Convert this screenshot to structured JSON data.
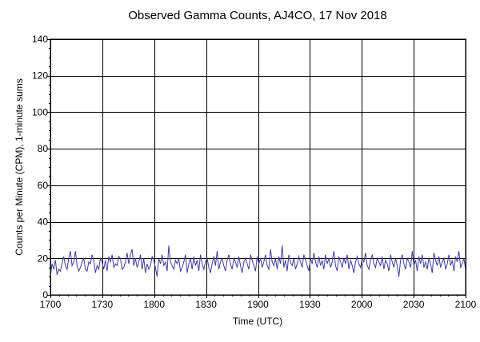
{
  "chart_data": {
    "type": "line",
    "title": "Observed Gamma Counts, AJ4CO, 17 Nov 2018",
    "xlabel": "Time (UTC)",
    "ylabel": "Counts per Minute (CPM), 1-minute sums",
    "xlim": [
      0,
      240
    ],
    "ylim": [
      0,
      140
    ],
    "x_ticks": [
      {
        "value": 0,
        "label": "1700"
      },
      {
        "value": 30,
        "label": "1730"
      },
      {
        "value": 60,
        "label": "1800"
      },
      {
        "value": 90,
        "label": "1830"
      },
      {
        "value": 120,
        "label": "1900"
      },
      {
        "value": 150,
        "label": "1930"
      },
      {
        "value": 180,
        "label": "2000"
      },
      {
        "value": 210,
        "label": "2030"
      },
      {
        "value": 240,
        "label": "2100"
      }
    ],
    "y_ticks": [
      {
        "value": 0,
        "label": "0"
      },
      {
        "value": 20,
        "label": "20"
      },
      {
        "value": 40,
        "label": "40"
      },
      {
        "value": 60,
        "label": "60"
      },
      {
        "value": 80,
        "label": "80"
      },
      {
        "value": 100,
        "label": "100"
      },
      {
        "value": 120,
        "label": "120"
      },
      {
        "value": 140,
        "label": "140"
      }
    ],
    "grid": true,
    "colors": {
      "series": "#3c3c9a",
      "grid": "#000000",
      "frame": "#000000"
    },
    "series": [
      {
        "values": [
          10,
          17,
          14,
          19,
          11,
          14,
          13,
          17,
          21,
          16,
          14,
          20,
          24,
          16,
          18,
          24,
          16,
          13,
          15,
          18,
          20,
          14,
          13,
          18,
          17,
          22,
          19,
          12,
          16,
          14,
          20,
          18,
          14,
          19,
          13,
          21,
          18,
          22,
          15,
          17,
          16,
          21,
          20,
          14,
          15,
          18,
          23,
          17,
          22,
          25,
          16,
          20,
          15,
          18,
          22,
          14,
          20,
          12,
          17,
          14,
          16,
          21,
          19,
          15,
          10,
          20,
          17,
          22,
          16,
          18,
          13,
          27,
          18,
          16,
          14,
          19,
          17,
          20,
          13,
          15,
          18,
          22,
          12,
          17,
          20,
          14,
          21,
          16,
          19,
          13,
          22,
          17,
          14,
          18,
          20,
          15,
          12,
          17,
          21,
          16,
          24,
          14,
          18,
          20,
          16,
          13,
          19,
          22,
          17,
          14,
          20,
          18,
          15,
          21,
          16,
          12,
          18,
          20,
          17,
          14,
          22,
          19,
          16,
          13,
          21,
          17,
          20,
          15,
          18,
          22,
          16,
          14,
          25,
          18,
          16,
          20,
          14,
          21,
          17,
          27,
          15,
          19,
          13,
          22,
          18,
          16,
          20,
          14,
          17,
          21,
          18,
          15,
          22,
          19,
          16,
          13,
          20,
          17,
          23,
          18,
          15,
          21,
          16,
          19,
          14,
          22,
          17,
          20,
          15,
          18,
          24,
          16,
          13,
          21,
          18,
          15,
          20,
          17,
          22,
          14,
          19,
          16,
          12,
          18,
          21,
          17,
          15,
          20,
          18,
          23,
          16,
          14,
          19,
          22,
          17,
          15,
          20,
          18,
          16,
          21,
          14,
          19,
          17,
          13,
          22,
          18,
          15,
          20,
          16,
          10,
          19,
          22,
          17,
          14,
          20,
          18,
          15,
          24,
          16,
          19,
          13,
          21,
          17,
          22,
          15,
          18,
          14,
          20,
          17,
          12,
          23,
          19,
          16,
          21,
          15,
          18,
          20,
          14,
          17,
          22,
          16,
          19,
          13,
          21,
          18,
          24,
          15,
          17,
          20,
          14
        ]
      }
    ]
  }
}
